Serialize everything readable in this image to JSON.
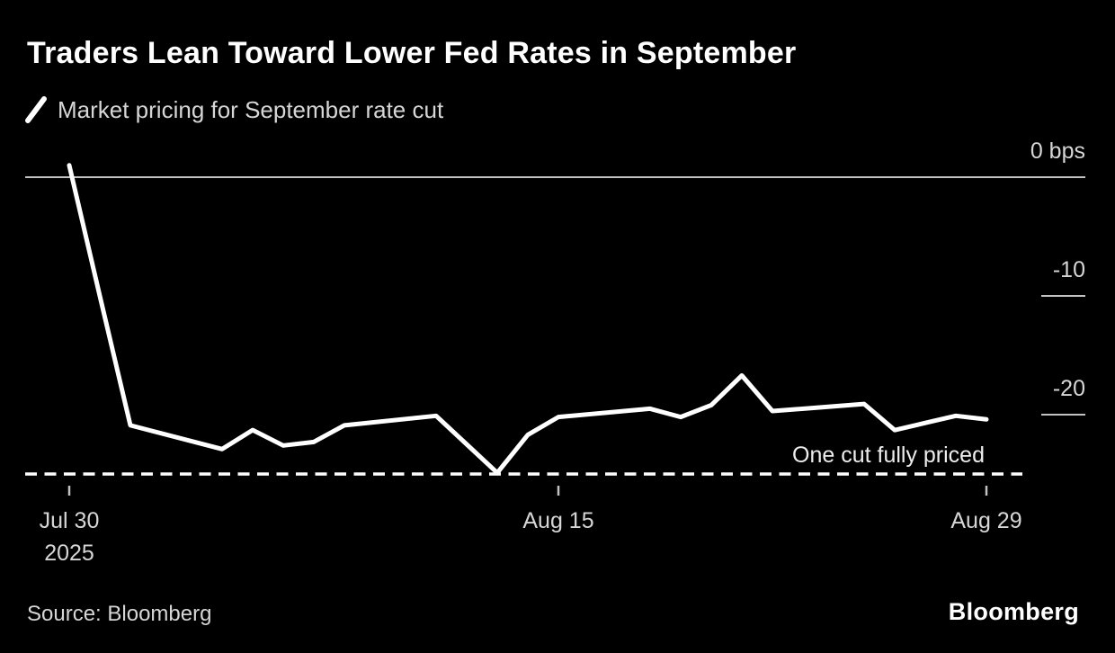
{
  "header": {
    "title": "Traders Lean Toward Lower Fed Rates in September",
    "legend": {
      "key_icon": "diagonal-line-series-key",
      "label": "Market pricing for September rate cut"
    }
  },
  "footer": {
    "source": "Source: Bloomberg",
    "brand": "Bloomberg"
  },
  "colors": {
    "background": "#000000",
    "series_line": "#ffffff",
    "title_text": "#ffffff",
    "secondary_text": "#d6d6d6",
    "annotation_text": "#ededed",
    "grid": "#c2c2c2",
    "dashed_line": "#ffffff"
  },
  "chart_data": {
    "type": "line",
    "title": "Traders Lean Toward Lower Fed Rates in September",
    "unit": "bps",
    "xlabel": "",
    "ylabel": "",
    "ylim": [
      -27,
      3
    ],
    "grid": "right-edge-tick-marks-only",
    "legend_position": "top-left",
    "y_ticks": [
      {
        "value": 0,
        "label": "0 bps"
      },
      {
        "value": -10,
        "label": "-10"
      },
      {
        "value": -20,
        "label": "-20"
      }
    ],
    "x_ticks": [
      {
        "day": 0,
        "label": "Jul 30",
        "sublabel": "2025"
      },
      {
        "day": 16,
        "label": "Aug 15",
        "sublabel": ""
      },
      {
        "day": 30,
        "label": "Aug 29",
        "sublabel": ""
      }
    ],
    "annotation": {
      "label": "One cut fully priced",
      "value_bps": -25,
      "style": "dashed-horizontal-line"
    },
    "series": [
      {
        "name": "Market pricing for September rate cut",
        "points": [
          {
            "date": "Jul 30",
            "day": 0,
            "bps": 1.0
          },
          {
            "date": "Jul 31",
            "day": 1,
            "bps": -10.0
          },
          {
            "date": "Aug 1",
            "day": 2,
            "bps": -20.9
          },
          {
            "date": "Aug 4",
            "day": 5,
            "bps": -22.9
          },
          {
            "date": "Aug 5",
            "day": 6,
            "bps": -21.3
          },
          {
            "date": "Aug 6",
            "day": 7,
            "bps": -22.6
          },
          {
            "date": "Aug 7",
            "day": 8,
            "bps": -22.3
          },
          {
            "date": "Aug 8",
            "day": 9,
            "bps": -20.9
          },
          {
            "date": "Aug 11",
            "day": 12,
            "bps": -20.1
          },
          {
            "date": "Aug 12",
            "day": 13,
            "bps": -22.5
          },
          {
            "date": "Aug 13",
            "day": 14,
            "bps": -24.9
          },
          {
            "date": "Aug 14",
            "day": 15,
            "bps": -21.7
          },
          {
            "date": "Aug 15",
            "day": 16,
            "bps": -20.2
          },
          {
            "date": "Aug 18",
            "day": 19,
            "bps": -19.5
          },
          {
            "date": "Aug 19",
            "day": 20,
            "bps": -20.2
          },
          {
            "date": "Aug 20",
            "day": 21,
            "bps": -19.2
          },
          {
            "date": "Aug 21",
            "day": 22,
            "bps": -16.7
          },
          {
            "date": "Aug 22",
            "day": 23,
            "bps": -19.7
          },
          {
            "date": "Aug 25",
            "day": 26,
            "bps": -19.1
          },
          {
            "date": "Aug 26",
            "day": 27,
            "bps": -21.3
          },
          {
            "date": "Aug 27",
            "day": 28,
            "bps": -20.7
          },
          {
            "date": "Aug 28",
            "day": 29,
            "bps": -20.1
          },
          {
            "date": "Aug 29",
            "day": 30,
            "bps": -20.4
          }
        ]
      }
    ]
  }
}
